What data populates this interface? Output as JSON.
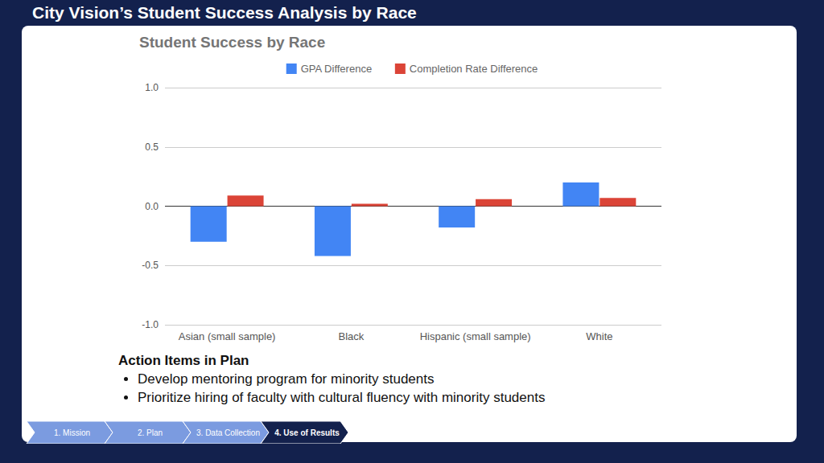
{
  "page": {
    "title": "City Vision’s Student Success Analysis by Race",
    "action_items": {
      "heading": "Action Items in Plan",
      "items": [
        "Develop mentoring program for minority students",
        "Prioritize hiring of faculty with cultural fluency with minority students"
      ]
    },
    "nav": {
      "steps": [
        "1. Mission",
        "2. Plan",
        "3. Data Collection",
        "4. Use of Results"
      ],
      "active": "4. Use of Results"
    }
  },
  "chart_data": {
    "type": "bar",
    "title": "Student Success by Race",
    "categories": [
      "Asian (small sample)",
      "Black",
      "Hispanic (small sample)",
      "White"
    ],
    "series": [
      {
        "name": "GPA Difference",
        "color": "#4285f4",
        "values": [
          -0.3,
          -0.42,
          -0.18,
          0.2
        ]
      },
      {
        "name": "Completion Rate Difference",
        "color": "#db4437",
        "values": [
          0.09,
          0.02,
          0.06,
          0.07
        ]
      }
    ],
    "ylim": [
      -1,
      1
    ],
    "yticks": [
      {
        "value": -1,
        "label": "-1.0"
      },
      -0.5,
      {
        "value": 0,
        "label": "0.0"
      },
      0.5,
      {
        "value": 1,
        "label": "1.0"
      }
    ],
    "grid": true,
    "legend": "top"
  }
}
